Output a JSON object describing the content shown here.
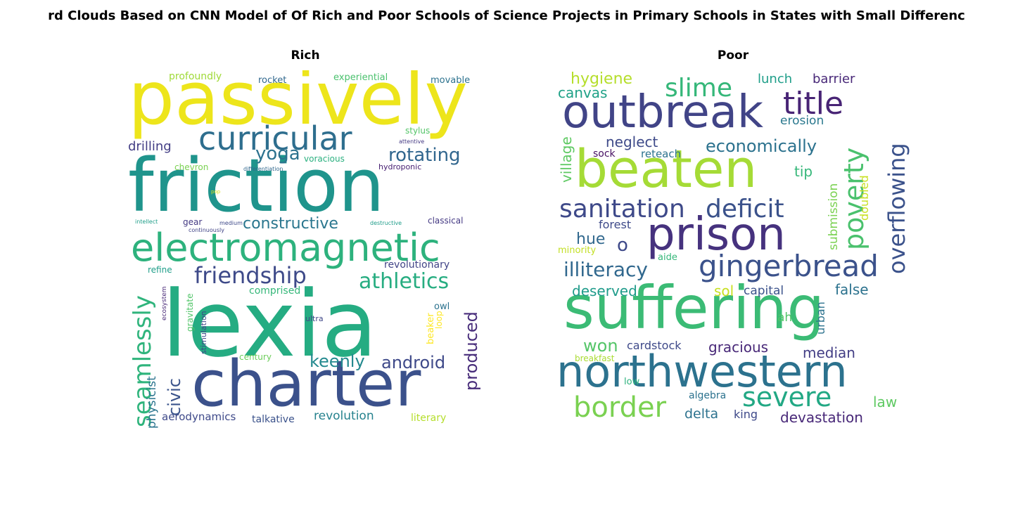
{
  "figure": {
    "title": "rd Clouds Based on CNN Model of Of Rich and Poor Schools of Science Projects in Primary Schools in States with Small Differenc"
  },
  "panels": [
    {
      "title": "Rich",
      "words": [
        {
          "text": "passively",
          "color": "#ede51b"
        },
        {
          "text": "friction",
          "color": "#1f948c"
        },
        {
          "text": "lexia",
          "color": "#25ac82"
        },
        {
          "text": "charter",
          "color": "#3b518b"
        },
        {
          "text": "electromagnetic",
          "color": "#2db27d"
        },
        {
          "text": "curricular",
          "color": "#2e6e8e"
        },
        {
          "text": "friendship",
          "color": "#3e4a89"
        },
        {
          "text": "athletics",
          "color": "#27ad81"
        },
        {
          "text": "constructive",
          "color": "#2a768e"
        },
        {
          "text": "seamlessly",
          "color": "#2fb47c"
        },
        {
          "text": "rotating",
          "color": "#31668e"
        },
        {
          "text": "yoga",
          "color": "#2c728e"
        },
        {
          "text": "keenly",
          "color": "#23898e"
        },
        {
          "text": "android",
          "color": "#3e4989"
        },
        {
          "text": "produced",
          "color": "#472c7a"
        },
        {
          "text": "civic",
          "color": "#3a538b"
        },
        {
          "text": "drilling",
          "color": "#433e85"
        },
        {
          "text": "revolution",
          "color": "#26828e"
        },
        {
          "text": "physicist",
          "color": "#2b748e"
        },
        {
          "text": "aerodynamics",
          "color": "#3e4989"
        },
        {
          "text": "talkative",
          "color": "#3b528b"
        },
        {
          "text": "literary",
          "color": "#b5de2b"
        },
        {
          "text": "revolutionary",
          "color": "#414487"
        },
        {
          "text": "comprised",
          "color": "#35b779"
        },
        {
          "text": "profoundly",
          "color": "#a0da39"
        },
        {
          "text": "rocket",
          "color": "#31688e"
        },
        {
          "text": "experiential",
          "color": "#4ac16d"
        },
        {
          "text": "movable",
          "color": "#2c728e"
        },
        {
          "text": "stylus",
          "color": "#54c568"
        },
        {
          "text": "chevron",
          "color": "#7ad151"
        },
        {
          "text": "voracious",
          "color": "#2ab07f"
        },
        {
          "text": "hydroponic",
          "color": "#482173"
        },
        {
          "text": "gear",
          "color": "#443a83"
        },
        {
          "text": "classical",
          "color": "#443983"
        },
        {
          "text": "refine",
          "color": "#1f9e89"
        },
        {
          "text": "owl",
          "color": "#2c728e"
        },
        {
          "text": "beaker",
          "color": "#fde725"
        },
        {
          "text": "loop",
          "color": "#fde725"
        },
        {
          "text": "century",
          "color": "#6ccd5a"
        },
        {
          "text": "ultra",
          "color": "#3f4788"
        },
        {
          "text": "gravitate",
          "color": "#52c569"
        },
        {
          "text": "stimulation",
          "color": "#3f4889"
        },
        {
          "text": "ecosystem",
          "color": "#482878"
        },
        {
          "text": "attentive",
          "color": "#443983"
        },
        {
          "text": "differentiation",
          "color": "#31688e"
        },
        {
          "text": "pop",
          "color": "#d8e219"
        },
        {
          "text": "intellect",
          "color": "#1f9e89"
        },
        {
          "text": "medium",
          "color": "#3e4989"
        },
        {
          "text": "continuously",
          "color": "#414487"
        },
        {
          "text": "destructive",
          "color": "#1e9c89"
        }
      ]
    },
    {
      "title": "Poor",
      "words": [
        {
          "text": "outbreak",
          "color": "#414487"
        },
        {
          "text": "beaten",
          "color": "#a5db36"
        },
        {
          "text": "prison",
          "color": "#46327e"
        },
        {
          "text": "suffering",
          "color": "#3bbb75"
        },
        {
          "text": "northwestern",
          "color": "#2c728e"
        },
        {
          "text": "gingerbread",
          "color": "#3b528b"
        },
        {
          "text": "sanitation",
          "color": "#3e4989"
        },
        {
          "text": "deficit",
          "color": "#3b528b"
        },
        {
          "text": "title",
          "color": "#482475"
        },
        {
          "text": "slime",
          "color": "#35b779"
        },
        {
          "text": "border",
          "color": "#7ad151"
        },
        {
          "text": "severe",
          "color": "#22a884"
        },
        {
          "text": "poverty",
          "color": "#4ac16d"
        },
        {
          "text": "overflowing",
          "color": "#3b528b"
        },
        {
          "text": "illiteracy",
          "color": "#31688e"
        },
        {
          "text": "economically",
          "color": "#2c728e"
        },
        {
          "text": "hygiene",
          "color": "#b5de2b"
        },
        {
          "text": "canvas",
          "color": "#1fa187"
        },
        {
          "text": "lunch",
          "color": "#1f9e89"
        },
        {
          "text": "barrier",
          "color": "#482878"
        },
        {
          "text": "erosion",
          "color": "#2a788e"
        },
        {
          "text": "neglect",
          "color": "#3e4a89"
        },
        {
          "text": "village",
          "color": "#5ec962"
        },
        {
          "text": "sock",
          "color": "#471063"
        },
        {
          "text": "reteach",
          "color": "#2c728e"
        },
        {
          "text": "tip",
          "color": "#35b779"
        },
        {
          "text": "submission",
          "color": "#7ad151"
        },
        {
          "text": "doubled",
          "color": "#c8e020"
        },
        {
          "text": "forest",
          "color": "#3e4a89"
        },
        {
          "text": "hue",
          "color": "#31688e"
        },
        {
          "text": "o",
          "color": "#3e4989"
        },
        {
          "text": "minority",
          "color": "#c2df23"
        },
        {
          "text": "aide",
          "color": "#35b779"
        },
        {
          "text": "deserved",
          "color": "#1e9b8a"
        },
        {
          "text": "sol",
          "color": "#c8e020"
        },
        {
          "text": "capital",
          "color": "#3b528b"
        },
        {
          "text": "false",
          "color": "#2c728e"
        },
        {
          "text": "urban",
          "color": "#2c728e"
        },
        {
          "text": "ah",
          "color": "#52c569"
        },
        {
          "text": "won",
          "color": "#54c568"
        },
        {
          "text": "cardstock",
          "color": "#3e4989"
        },
        {
          "text": "gracious",
          "color": "#482878"
        },
        {
          "text": "median",
          "color": "#433e85"
        },
        {
          "text": "breakfast",
          "color": "#aadc32"
        },
        {
          "text": "low",
          "color": "#2db27d"
        },
        {
          "text": "algebra",
          "color": "#2c728e"
        },
        {
          "text": "delta",
          "color": "#2c728e"
        },
        {
          "text": "king",
          "color": "#3e4989"
        },
        {
          "text": "devastation",
          "color": "#482878"
        },
        {
          "text": "law",
          "color": "#5ec962"
        }
      ]
    }
  ]
}
